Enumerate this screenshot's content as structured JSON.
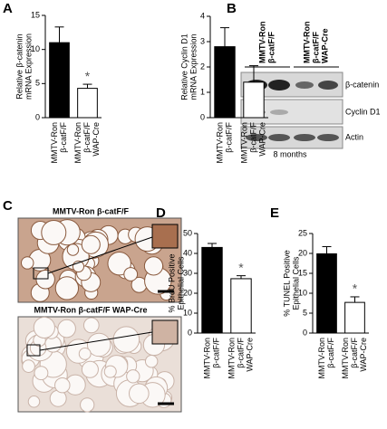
{
  "panel_labels": [
    "A",
    "B",
    "C",
    "D",
    "E"
  ],
  "chart_data": [
    {
      "type": "bar",
      "ylabel": [
        "Relative β-catenin",
        "mRNA Expression"
      ],
      "categories": [
        [
          "MMTV-Ron",
          "β-catF/F"
        ],
        [
          "MMTV-Ron",
          "β-catF/F",
          "WAP-Cre"
        ]
      ],
      "series": [
        {
          "colors": [
            "#000000",
            "#ffffff"
          ],
          "values": [
            11,
            4.3
          ],
          "errors": [
            2.3,
            0.6
          ]
        }
      ],
      "ylim": [
        0,
        15
      ],
      "yticks": [
        0,
        5,
        10,
        15
      ],
      "annotations": [
        {
          "text": "*",
          "at": 1
        }
      ]
    },
    {
      "type": "bar",
      "ylabel": [
        "Relative Cyclin D1",
        "mRNA Expression"
      ],
      "categories": [
        [
          "MMTV-Ron",
          "β-catF/F"
        ],
        [
          "MMTV-Ron",
          "β-catF/F",
          "WAP-Cre"
        ]
      ],
      "series": [
        {
          "colors": [
            "#000000",
            "#ffffff"
          ],
          "values": [
            2.8,
            1.4
          ],
          "errors": [
            0.75,
            0.65
          ]
        }
      ],
      "ylim": [
        0,
        4
      ],
      "yticks": [
        0,
        1,
        2,
        3,
        4
      ]
    },
    {
      "type": "bar",
      "ylabel": [
        "% BrdU Positive",
        "Epithelial Cells"
      ],
      "categories": [
        [
          "MMTV-Ron",
          "β-catF/F"
        ],
        [
          "MMTV-Ron",
          "β-catF/F",
          "WAP-Cre"
        ]
      ],
      "series": [
        {
          "colors": [
            "#000000",
            "#ffffff"
          ],
          "values": [
            43,
            27.3
          ],
          "errors": [
            2,
            1.5
          ]
        }
      ],
      "ylim": [
        0,
        50
      ],
      "yticks": [
        0,
        10,
        20,
        30,
        40,
        50
      ],
      "annotations": [
        {
          "text": "*",
          "at": 1
        }
      ]
    },
    {
      "type": "bar",
      "ylabel": [
        "% TUNEL Positive",
        "Epithelial Cells"
      ],
      "categories": [
        [
          "MMTV-Ron",
          "β-catF/F"
        ],
        [
          "MMTV-Ron",
          "β-catF/F",
          "WAP-Cre"
        ]
      ],
      "series": [
        {
          "colors": [
            "#000000",
            "#ffffff"
          ],
          "values": [
            19.9,
            7.7
          ],
          "errors": [
            1.8,
            1.4
          ]
        }
      ],
      "ylim": [
        0,
        25
      ],
      "yticks": [
        0,
        5,
        10,
        15,
        20,
        25
      ],
      "annotations": [
        {
          "text": "*",
          "at": 1
        }
      ]
    }
  ],
  "blot": {
    "columns": [
      [
        "MMTV-Ron",
        "β-catF/F"
      ],
      [
        "MMTV-Ron",
        "β-catF/F",
        "WAP-Cre"
      ]
    ],
    "rows": [
      "β-catenin",
      "Cyclin D1",
      "Actin"
    ],
    "caption": "8 months"
  },
  "histology": {
    "titles": [
      "MMTV-Ron β-catF/F",
      "MMTV-Ron β-catF/F WAP-Cre"
    ]
  }
}
